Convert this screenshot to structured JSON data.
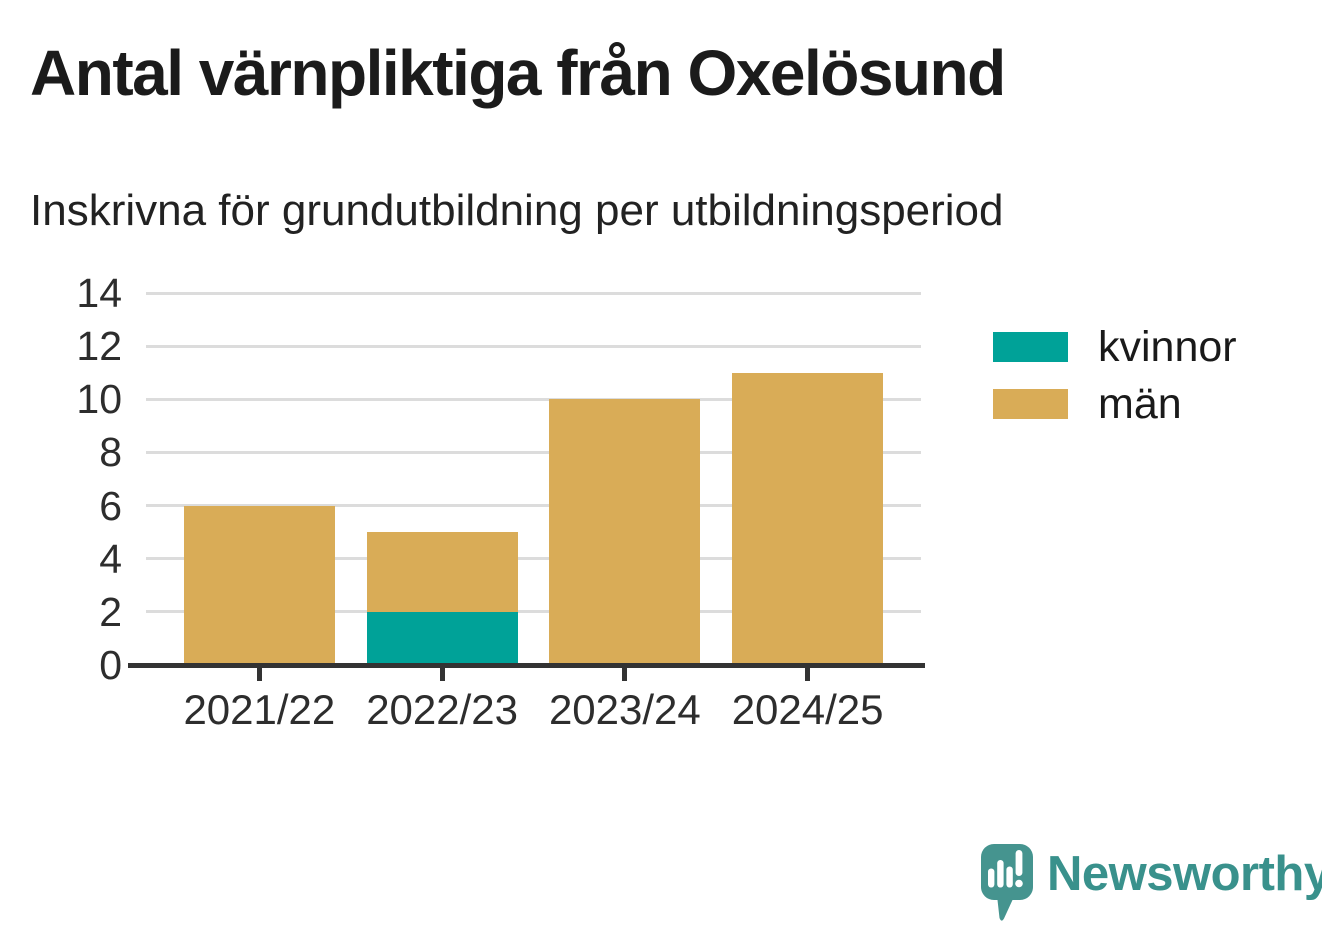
{
  "chart_data": {
    "type": "bar",
    "stacked": true,
    "title": "Antal värnpliktiga från Oxelösund",
    "subtitle": "Inskrivna för grundutbildning per utbildningsperiod",
    "categories": [
      "2021/22",
      "2022/23",
      "2023/24",
      "2024/25"
    ],
    "series": [
      {
        "name": "kvinnor",
        "color": "#00A298",
        "values": [
          0,
          2,
          0,
          0
        ]
      },
      {
        "name": "män",
        "color": "#D9AC57",
        "values": [
          6,
          3,
          10,
          11
        ]
      }
    ],
    "totals": [
      6,
      5,
      10,
      11
    ],
    "ylim": [
      0,
      14
    ],
    "yticks": [
      0,
      2,
      4,
      6,
      8,
      10,
      12,
      14
    ],
    "grid": true,
    "legend_position": "right"
  },
  "legend": {
    "items": [
      {
        "label": "kvinnor",
        "color": "#00A298"
      },
      {
        "label": "män",
        "color": "#D9AC57"
      }
    ]
  },
  "branding": {
    "logo_text": "Newsworthy",
    "logo_text_color": "#39918C",
    "logo_icon_color": "#45948F",
    "logo_icon": "newsworthy-speech-bubble-chart-icon"
  },
  "style": {
    "grid_color": "#DCDCDC",
    "axis_color": "#333333",
    "background": "#FFFFFF"
  }
}
